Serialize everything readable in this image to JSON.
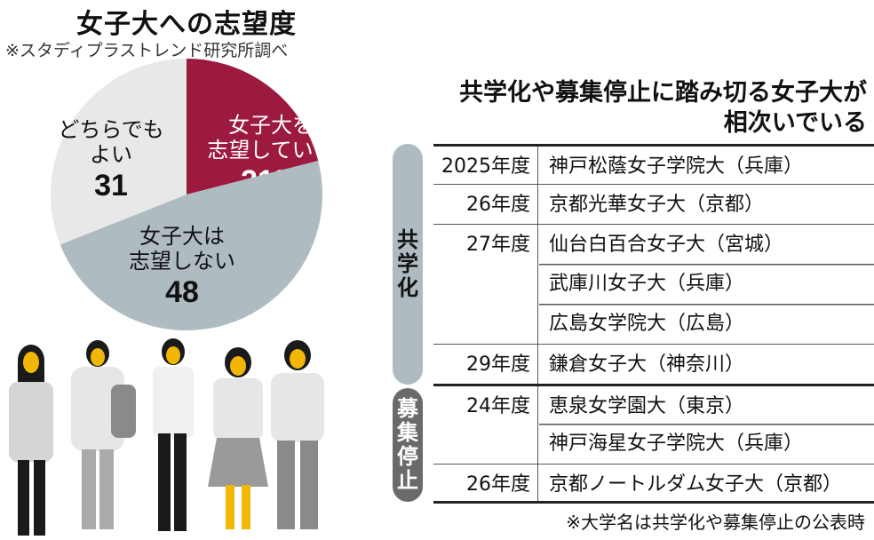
{
  "chart_data": {
    "type": "pie",
    "title": "女子大への志望度",
    "source": "※スタディプラストレンド研究所調べ",
    "unit": "%",
    "slices": [
      {
        "label_lines": [
          "女子大を",
          "志望している"
        ],
        "value": 21,
        "value_label": "21%",
        "color": "#9c1a3e",
        "text_color": "#ffffff"
      },
      {
        "label_lines": [
          "女子大は",
          "志望しない"
        ],
        "value": 48,
        "value_label": "48",
        "color": "#aebcc2",
        "text_color": "#111111"
      },
      {
        "label_lines": [
          "どちらでも",
          "よい"
        ],
        "value": 31,
        "value_label": "31",
        "color": "#e8e8e8",
        "text_color": "#111111"
      }
    ]
  },
  "table": {
    "title_line1": "共学化や募集停止に踏み切る女子大が",
    "title_line2": "相次いでいる",
    "groups": [
      {
        "label": [
          "共",
          "学",
          "化"
        ],
        "color": "#aebcc2",
        "rows": [
          {
            "year": "2025年度",
            "name": "神戸松蔭女子学院大（兵庫）"
          },
          {
            "year": "26年度",
            "name": "京都光華女子大（京都）"
          },
          {
            "year": "27年度",
            "name": "仙台白百合女子大（宮城）"
          },
          {
            "year": "",
            "name": "武庫川女子大（兵庫）"
          },
          {
            "year": "",
            "name": "広島女学院大（広島）"
          },
          {
            "year": "29年度",
            "name": "鎌倉女子大（神奈川）"
          }
        ]
      },
      {
        "label": [
          "募",
          "集",
          "停",
          "止"
        ],
        "color": "#6a6a6a",
        "rows": [
          {
            "year": "24年度",
            "name": "恵泉女学園大（東京）"
          },
          {
            "year": "",
            "name": "神戸海星女子学院大（兵庫）"
          },
          {
            "year": "26年度",
            "name": "京都ノートルダム女子大（京都）"
          }
        ]
      }
    ],
    "note": "※大学名は共学化や募集停止の公表時"
  }
}
